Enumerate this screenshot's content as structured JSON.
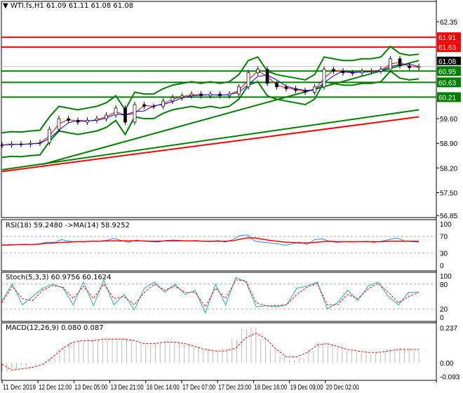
{
  "header": {
    "symbol": "WTI.fs,H1",
    "ohlc": "61.09 61.11 61.08 61.08"
  },
  "price_axis": {
    "ticks": [
      "62.35",
      "59.60",
      "58.90",
      "58.20",
      "57.50",
      "56.85"
    ],
    "tick_values": [
      62.35,
      59.6,
      58.9,
      58.2,
      57.5,
      56.85
    ],
    "current": "61.08",
    "current_value": 61.08
  },
  "levels": [
    {
      "label": "61.91",
      "value": 61.91,
      "color": "#ff0000"
    },
    {
      "label": "61.63",
      "value": 61.63,
      "color": "#ff0000"
    },
    {
      "label": "60.95",
      "value": 60.95,
      "color": "#008000"
    },
    {
      "label": "60.63",
      "value": 60.63,
      "color": "#008000"
    },
    {
      "label": "60.21",
      "value": 60.21,
      "color": "#008000"
    }
  ],
  "chart_data": {
    "type": "line",
    "price": [
      58.85,
      58.88,
      58.87,
      58.9,
      58.92,
      59.3,
      59.6,
      59.55,
      59.5,
      59.55,
      59.6,
      59.7,
      59.9,
      59.5,
      60.0,
      59.95,
      59.95,
      60.1,
      60.2,
      60.25,
      60.3,
      60.25,
      60.3,
      60.25,
      60.3,
      60.5,
      60.9,
      61.0,
      60.6,
      60.5,
      60.45,
      60.4,
      60.35,
      60.5,
      61.0,
      60.95,
      60.9,
      60.9,
      60.95,
      60.95,
      61.0,
      61.3,
      61.1,
      61.05,
      61.08
    ],
    "trend_red": [
      58.1,
      59.65
    ],
    "trend_green": [
      58.15,
      59.85
    ],
    "trend_green2": [
      58.3,
      61.25
    ],
    "rsi": {
      "label": "RSI(18) 59.2480  ->MA(14) 58.9252",
      "ticks": [
        "100",
        "70",
        "30",
        "0"
      ],
      "rsi": [
        48,
        50,
        50,
        51,
        50,
        52,
        56,
        55,
        62,
        58,
        57,
        56,
        59,
        58,
        60,
        65,
        60,
        55,
        61,
        58,
        57,
        56,
        60,
        61,
        60,
        58,
        60,
        58,
        57,
        60,
        56,
        62,
        72,
        73,
        58,
        56,
        54,
        52,
        48,
        52,
        56,
        50,
        62,
        64,
        58,
        55,
        57,
        56,
        57,
        58,
        55,
        58,
        62,
        66,
        59,
        57,
        56
      ],
      "ma": [
        49,
        49,
        50,
        50,
        50,
        51,
        53,
        54,
        55,
        56,
        57,
        57,
        58,
        58,
        59,
        59,
        59,
        59,
        59,
        59,
        58,
        58,
        59,
        59,
        59,
        59,
        59,
        58,
        58,
        58,
        58,
        59,
        63,
        66,
        66,
        63,
        60,
        58,
        56,
        55,
        54,
        54,
        55,
        57,
        58,
        57,
        57,
        57,
        57,
        57,
        57,
        57,
        58,
        58,
        58,
        58,
        58
      ]
    },
    "stoch": {
      "label": "Stoch(5,3,3) 60.9756 60.1624",
      "ticks": [
        "100",
        "80",
        "20",
        "0"
      ],
      "main": [
        40,
        80,
        30,
        50,
        70,
        80,
        70,
        30,
        85,
        28,
        90,
        30,
        55,
        18,
        70,
        85,
        60,
        80,
        55,
        65,
        10,
        80,
        30,
        96,
        85,
        25,
        28,
        25,
        30,
        70,
        75,
        85,
        20,
        35,
        65,
        40,
        75,
        85,
        50,
        30,
        60,
        61
      ],
      "signal": [
        35,
        75,
        45,
        40,
        65,
        77,
        72,
        45,
        75,
        45,
        80,
        45,
        50,
        30,
        60,
        80,
        65,
        75,
        60,
        60,
        25,
        70,
        45,
        90,
        88,
        35,
        27,
        28,
        30,
        55,
        72,
        82,
        30,
        30,
        55,
        45,
        68,
        82,
        60,
        35,
        50,
        60
      ]
    },
    "macd": {
      "label": "MACD(12,26,9) 0.080 0.087",
      "ticks": [
        "0.237",
        "0.00",
        "-0.093"
      ],
      "hist": [
        -0.06,
        -0.04,
        -0.02,
        -0.01,
        0.0,
        0.03,
        0.09,
        0.14,
        0.15,
        0.16,
        0.15,
        0.16,
        0.17,
        0.16,
        0.14,
        0.12,
        0.13,
        0.14,
        0.14,
        0.12,
        0.11,
        0.09,
        0.08,
        0.1,
        0.16,
        0.23,
        0.24,
        0.16,
        0.1,
        0.05,
        0.02,
        0.03,
        0.08,
        0.14,
        0.13,
        0.1,
        0.08,
        0.07,
        0.06,
        0.06,
        0.08,
        0.1,
        0.1,
        0.08
      ],
      "signal": [
        -0.01,
        -0.05,
        -0.04,
        -0.03,
        -0.01,
        0.04,
        0.1,
        0.14,
        0.15,
        0.15,
        0.16,
        0.16,
        0.16,
        0.15,
        0.13,
        0.13,
        0.14,
        0.14,
        0.13,
        0.11,
        0.09,
        0.08,
        0.08,
        0.1,
        0.17,
        0.2,
        0.16,
        0.09,
        0.04,
        0.04,
        0.07,
        0.12,
        0.13,
        0.11,
        0.09,
        0.08,
        0.07,
        0.07,
        0.08,
        0.09,
        0.09,
        0.09
      ]
    },
    "x_labels": [
      "11 Dec 2019",
      "12 Dec 12:00",
      "13 Dec 05:00",
      "13 Dec 21:00",
      "16 Dec 14:00",
      "17 Dec 07:00",
      "17 Dec 23:00",
      "18 Dec 16:00",
      "19 Dec 09:00",
      "20 Dec 02:00"
    ]
  }
}
